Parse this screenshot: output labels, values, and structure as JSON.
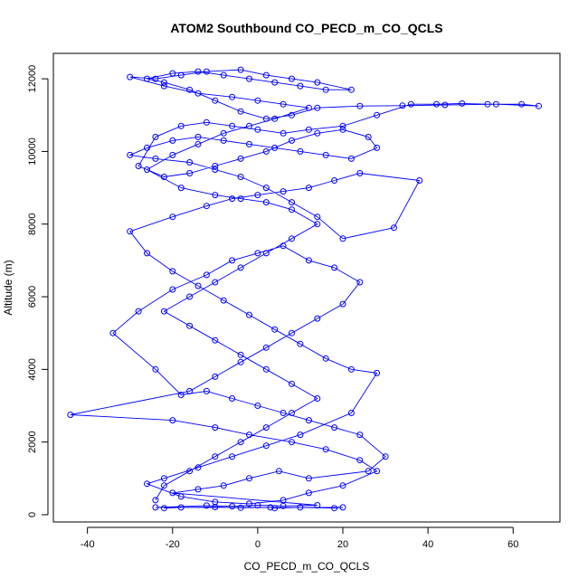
{
  "chart_data": {
    "type": "scatter",
    "title": "ATOM2 Southbound CO_PECD_m_CO_QCLS",
    "xlabel": "CO_PECD_m_CO_QCLS",
    "ylabel": "Altitude (m)",
    "xlim": [
      -48,
      71
    ],
    "ylim": [
      -200,
      12700
    ],
    "x_ticks": [
      -40,
      -20,
      0,
      20,
      40,
      60
    ],
    "y_ticks": [
      0,
      2000,
      4000,
      6000,
      8000,
      10000,
      12000
    ],
    "x_tick_labels": [
      "-40",
      "-20",
      "0",
      "20",
      "40",
      "60"
    ],
    "y_tick_labels": [
      "0",
      "2000",
      "4000",
      "6000",
      "8000",
      "10000",
      "12000"
    ],
    "grid": false,
    "series": [
      {
        "color": "#0000ff",
        "marker": "circle-open",
        "line": true,
        "points": [
          [
            -22,
            180
          ],
          [
            -18,
            200
          ],
          [
            -10,
            210
          ],
          [
            -4,
            190
          ],
          [
            3,
            200
          ],
          [
            4,
            180
          ],
          [
            10,
            200
          ],
          [
            18,
            180
          ],
          [
            20,
            200
          ],
          [
            -24,
            200
          ],
          [
            -12,
            250
          ],
          [
            -6,
            230
          ],
          [
            0,
            260
          ],
          [
            6,
            240
          ],
          [
            14,
            260
          ],
          [
            -20,
            600
          ],
          [
            -14,
            700
          ],
          [
            -8,
            800
          ],
          [
            -2,
            1000
          ],
          [
            5,
            1200
          ],
          [
            12,
            1000
          ],
          [
            26,
            1200
          ],
          [
            30,
            1600
          ],
          [
            24,
            2200
          ],
          [
            18,
            2400
          ],
          [
            12,
            2600
          ],
          [
            6,
            2800
          ],
          [
            0,
            3000
          ],
          [
            -6,
            3200
          ],
          [
            -12,
            3400
          ],
          [
            -18,
            3300
          ],
          [
            -24,
            4000
          ],
          [
            -34,
            5000
          ],
          [
            -28,
            5600
          ],
          [
            -20,
            6200
          ],
          [
            -12,
            6600
          ],
          [
            -6,
            7000
          ],
          [
            0,
            7200
          ],
          [
            6,
            7400
          ],
          [
            12,
            7000
          ],
          [
            18,
            6800
          ],
          [
            24,
            6400
          ],
          [
            20,
            5800
          ],
          [
            14,
            5400
          ],
          [
            8,
            5000
          ],
          [
            2,
            4600
          ],
          [
            -4,
            4200
          ],
          [
            -10,
            3800
          ],
          [
            -16,
            3400
          ],
          [
            -44,
            2750
          ],
          [
            -20,
            2600
          ],
          [
            -10,
            2400
          ],
          [
            -2,
            2200
          ],
          [
            8,
            2000
          ],
          [
            16,
            1800
          ],
          [
            24,
            1500
          ],
          [
            28,
            1200
          ],
          [
            20,
            800
          ],
          [
            12,
            600
          ],
          [
            6,
            400
          ],
          [
            -2,
            300
          ],
          [
            -10,
            350
          ],
          [
            -18,
            500
          ],
          [
            -26,
            850
          ],
          [
            -22,
            1000
          ],
          [
            -14,
            1300
          ],
          [
            -6,
            1600
          ],
          [
            2,
            1900
          ],
          [
            10,
            2200
          ],
          [
            22,
            2800
          ],
          [
            28,
            3900
          ],
          [
            22,
            4000
          ],
          [
            16,
            4300
          ],
          [
            10,
            4700
          ],
          [
            4,
            5100
          ],
          [
            -2,
            5500
          ],
          [
            -8,
            5900
          ],
          [
            -14,
            6300
          ],
          [
            -20,
            6700
          ],
          [
            -26,
            7200
          ],
          [
            -30,
            7800
          ],
          [
            -20,
            8200
          ],
          [
            -12,
            8500
          ],
          [
            -6,
            8700
          ],
          [
            0,
            8800
          ],
          [
            6,
            8900
          ],
          [
            12,
            9000
          ],
          [
            18,
            9200
          ],
          [
            24,
            9400
          ],
          [
            38,
            9200
          ],
          [
            32,
            7900
          ],
          [
            20,
            7600
          ],
          [
            14,
            8200
          ],
          [
            8,
            8600
          ],
          [
            2,
            9000
          ],
          [
            -4,
            9300
          ],
          [
            -10,
            9500
          ],
          [
            -16,
            9700
          ],
          [
            -24,
            9800
          ],
          [
            -30,
            9900
          ],
          [
            -26,
            10100
          ],
          [
            -20,
            10300
          ],
          [
            -14,
            10400
          ],
          [
            -8,
            10300
          ],
          [
            -2,
            10200
          ],
          [
            4,
            10100
          ],
          [
            10,
            10000
          ],
          [
            16,
            9900
          ],
          [
            22,
            9800
          ],
          [
            28,
            10100
          ],
          [
            26,
            10400
          ],
          [
            20,
            10600
          ],
          [
            14,
            10500
          ],
          [
            8,
            10300
          ],
          [
            2,
            10000
          ],
          [
            -4,
            9800
          ],
          [
            -10,
            9600
          ],
          [
            -16,
            9400
          ],
          [
            -22,
            9300
          ],
          [
            -28,
            9600
          ],
          [
            -24,
            10400
          ],
          [
            -18,
            10700
          ],
          [
            -12,
            10800
          ],
          [
            -6,
            10700
          ],
          [
            0,
            10600
          ],
          [
            6,
            10500
          ],
          [
            12,
            10600
          ],
          [
            20,
            10700
          ],
          [
            28,
            11000
          ],
          [
            36,
            11300
          ],
          [
            42,
            11300
          ],
          [
            48,
            11320
          ],
          [
            54,
            11300
          ],
          [
            62,
            11300
          ],
          [
            66,
            11250
          ],
          [
            56,
            11300
          ],
          [
            44,
            11280
          ],
          [
            34,
            11260
          ],
          [
            24,
            11250
          ],
          [
            14,
            11200
          ],
          [
            8,
            11000
          ],
          [
            2,
            10900
          ],
          [
            -4,
            11100
          ],
          [
            -10,
            11400
          ],
          [
            -16,
            11700
          ],
          [
            -22,
            11900
          ],
          [
            -26,
            12000
          ],
          [
            -20,
            12150
          ],
          [
            -14,
            12200
          ],
          [
            -8,
            12100
          ],
          [
            -2,
            12000
          ],
          [
            4,
            11900
          ],
          [
            10,
            11800
          ],
          [
            16,
            11700
          ],
          [
            22,
            11700
          ],
          [
            14,
            11900
          ],
          [
            8,
            12000
          ],
          [
            2,
            12100
          ],
          [
            -4,
            12250
          ],
          [
            -12,
            12200
          ],
          [
            -18,
            12100
          ],
          [
            -24,
            12000
          ],
          [
            -30,
            12050
          ],
          [
            -22,
            11800
          ],
          [
            -14,
            11600
          ],
          [
            -6,
            11500
          ],
          [
            0,
            11400
          ],
          [
            6,
            11300
          ],
          [
            12,
            11200
          ],
          [
            4,
            10900
          ],
          [
            -2,
            10700
          ],
          [
            -8,
            10500
          ],
          [
            -14,
            10200
          ],
          [
            -20,
            9900
          ],
          [
            -26,
            9500
          ],
          [
            -18,
            9000
          ],
          [
            -10,
            8800
          ],
          [
            -4,
            8700
          ],
          [
            2,
            8600
          ],
          [
            8,
            8400
          ],
          [
            14,
            8000
          ],
          [
            8,
            7600
          ],
          [
            2,
            7200
          ],
          [
            -4,
            6800
          ],
          [
            -10,
            6400
          ],
          [
            -16,
            6000
          ],
          [
            -22,
            5600
          ],
          [
            -16,
            5200
          ],
          [
            -10,
            4800
          ],
          [
            -4,
            4400
          ],
          [
            2,
            4000
          ],
          [
            8,
            3600
          ],
          [
            14,
            3200
          ],
          [
            8,
            2800
          ],
          [
            2,
            2400
          ],
          [
            -4,
            2000
          ],
          [
            -10,
            1600
          ],
          [
            -16,
            1200
          ],
          [
            -22,
            800
          ],
          [
            -24,
            400
          ]
        ]
      }
    ]
  }
}
